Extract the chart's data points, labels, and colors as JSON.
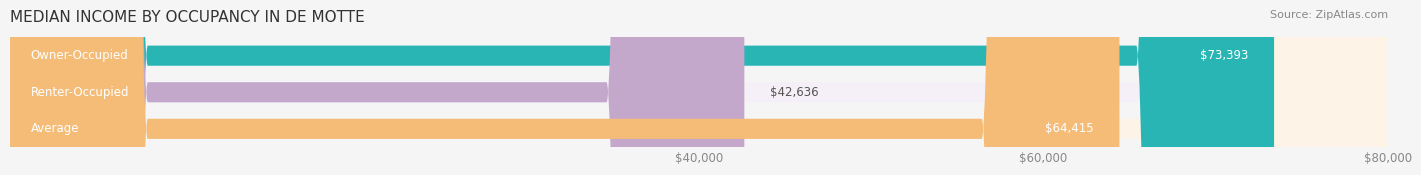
{
  "title": "MEDIAN INCOME BY OCCUPANCY IN DE MOTTE",
  "source": "Source: ZipAtlas.com",
  "categories": [
    "Owner-Occupied",
    "Renter-Occupied",
    "Average"
  ],
  "values": [
    73393,
    42636,
    64415
  ],
  "labels": [
    "$73,393",
    "$42,636",
    "$64,415"
  ],
  "bar_colors": [
    "#2ab5b5",
    "#c4a8cc",
    "#f5bc78"
  ],
  "bar_bg_colors": [
    "#e8f7f7",
    "#f5f0f7",
    "#fdf3e7"
  ],
  "xlim": [
    0,
    80000
  ],
  "xticks": [
    40000,
    60000,
    80000
  ],
  "xtick_labels": [
    "$40,000",
    "$60,000",
    "$80,000"
  ],
  "label_color_inside": "#ffffff",
  "label_color_outside": "#555555",
  "title_fontsize": 11,
  "source_fontsize": 8,
  "tick_fontsize": 8.5,
  "bar_label_fontsize": 8.5,
  "category_fontsize": 8.5,
  "bar_height": 0.55,
  "background_color": "#f5f5f5"
}
